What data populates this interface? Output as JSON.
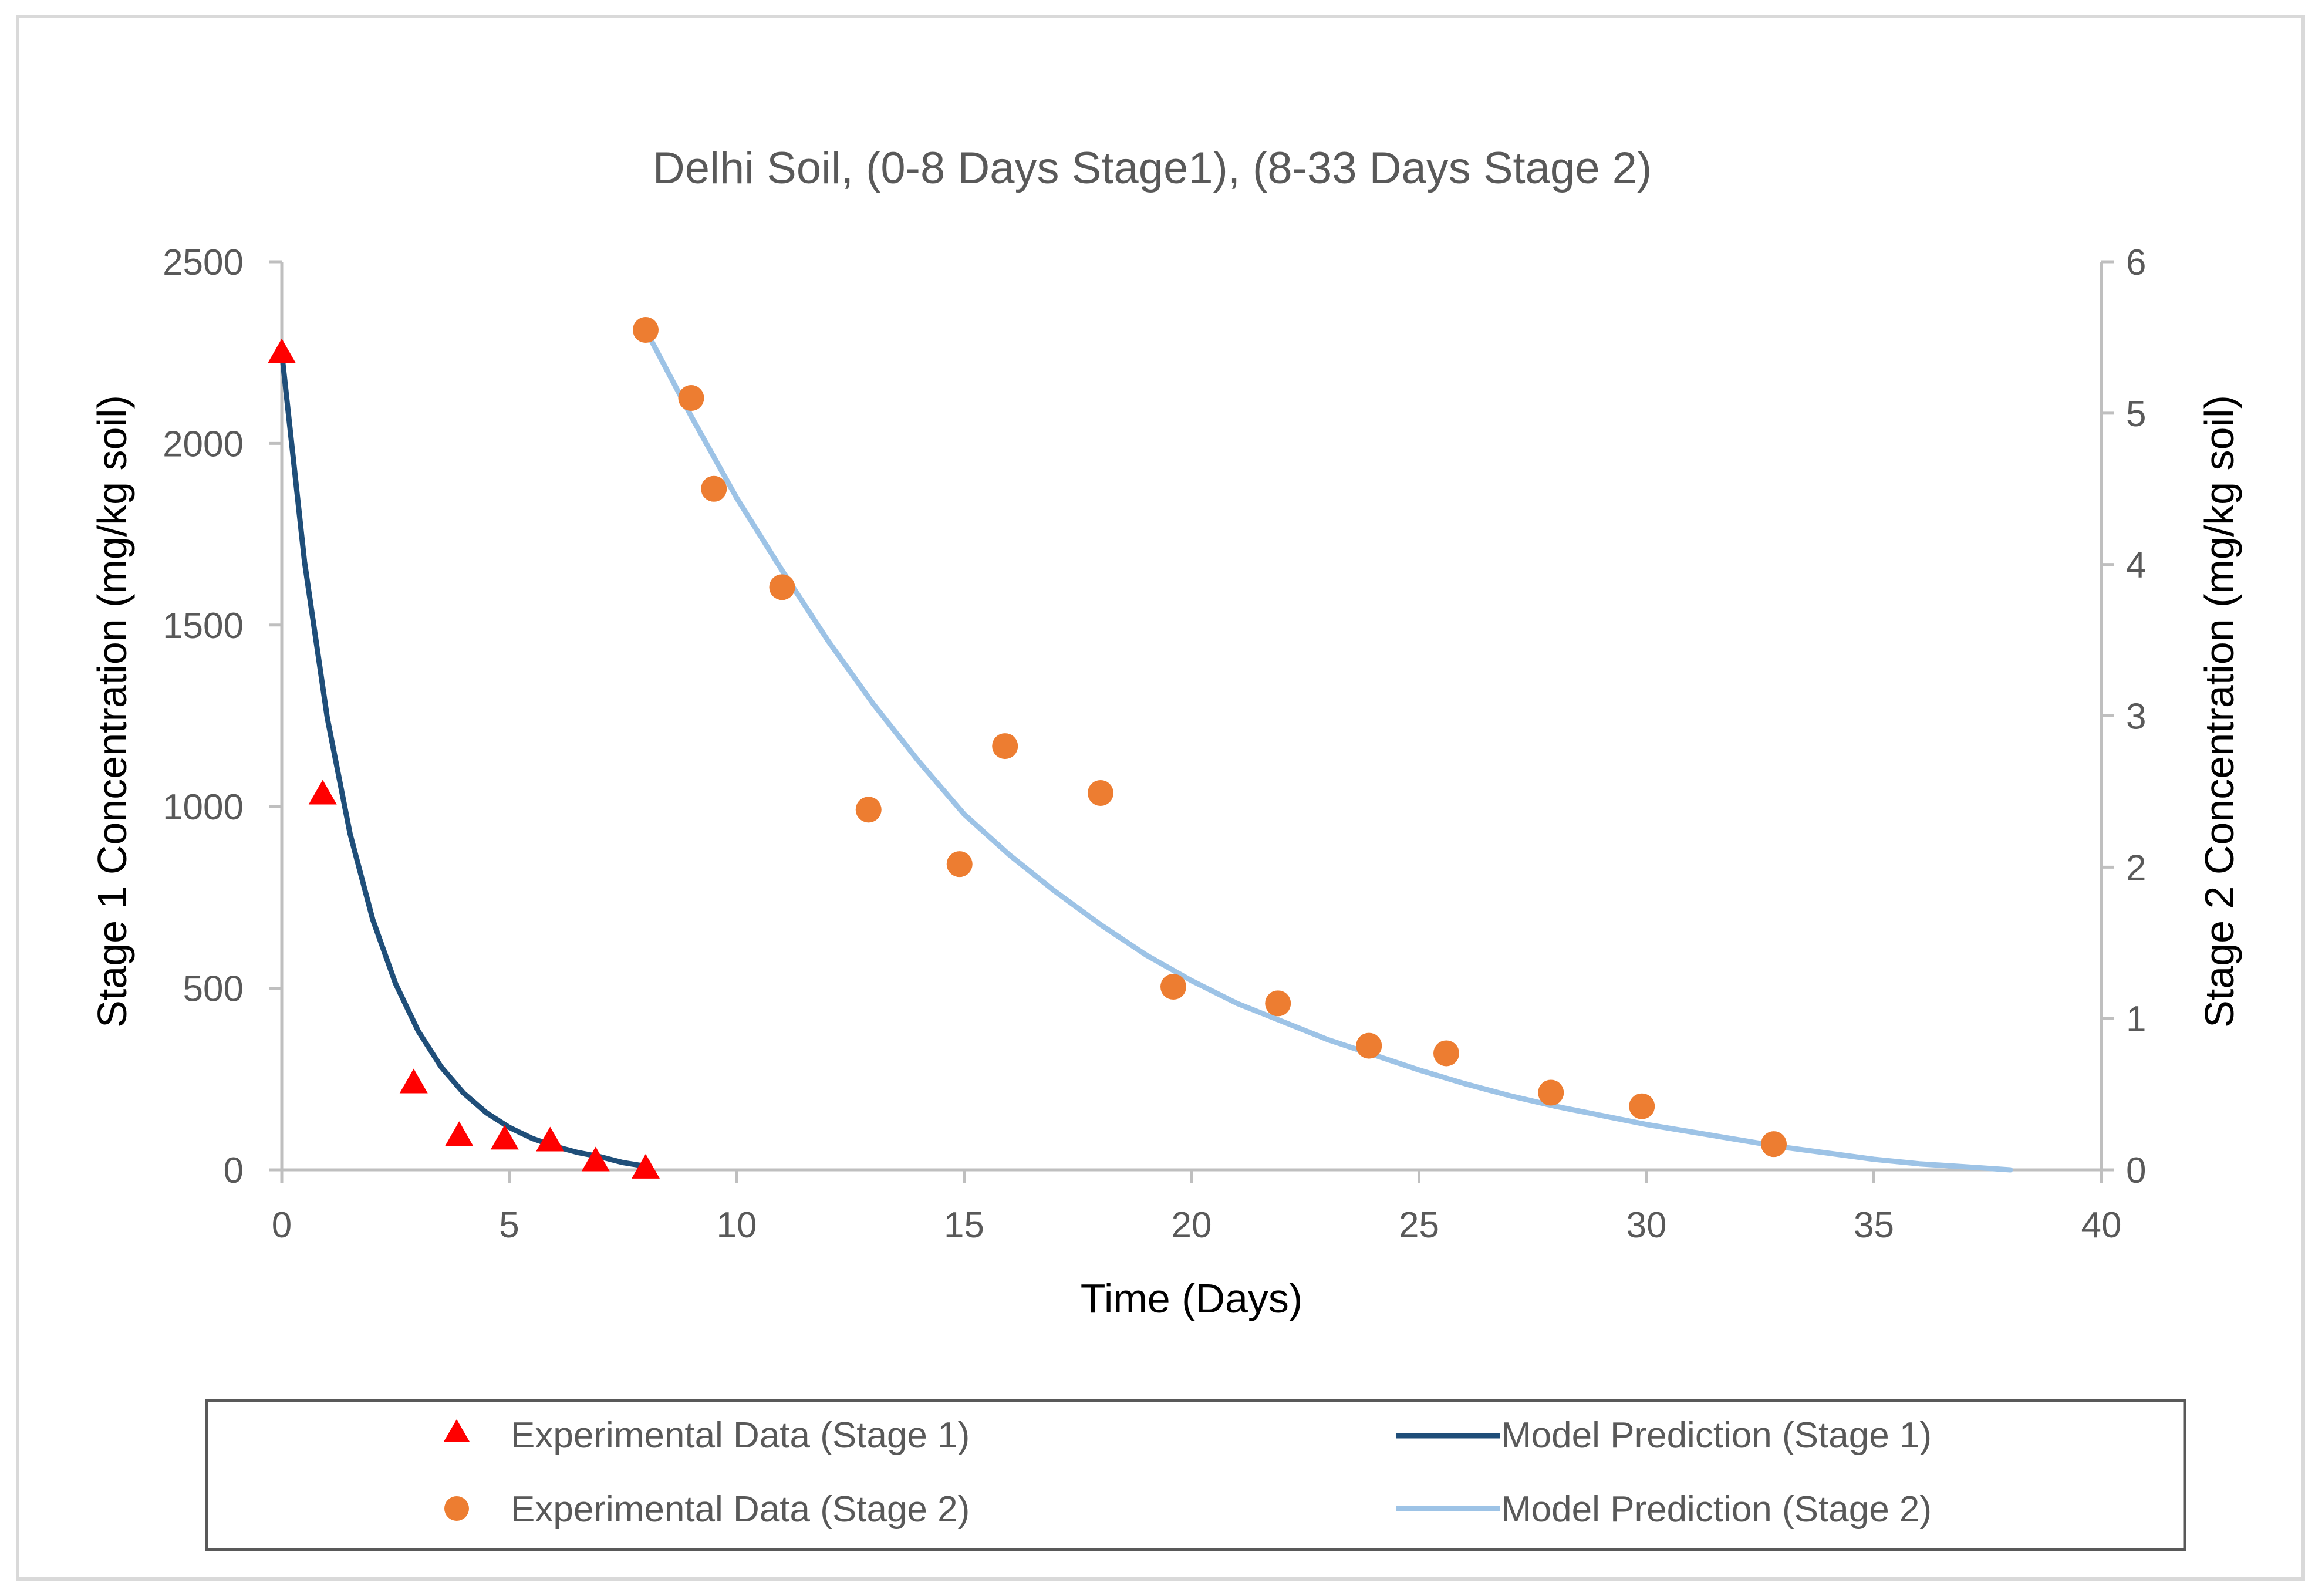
{
  "chart_data": {
    "type": "scatter",
    "title": "Delhi Soil, (0-8 Days Stage1), (8-33 Days Stage 2)",
    "xlabel": "Time (Days)",
    "ylabel": "Stage 1 Concentration (mg/kg soil)",
    "y2label": "Stage 2 Concentration (mg/kg soil)",
    "xlim": [
      0,
      40
    ],
    "ylim": [
      0,
      2500
    ],
    "y2lim": [
      0,
      6
    ],
    "xticks": [
      0,
      5,
      10,
      15,
      20,
      25,
      30,
      35,
      40
    ],
    "yticks": [
      0,
      500,
      1000,
      1500,
      2000,
      2500
    ],
    "y2ticks": [
      0,
      1,
      2,
      3,
      4,
      5,
      6
    ],
    "grid": false,
    "legend_position": "bottom",
    "colors": {
      "stage1_points": "#ff0000",
      "stage2_points": "#ed7d31",
      "stage1_model": "#1f4e79",
      "stage2_model": "#9dc3e6"
    },
    "series": [
      {
        "name": "Experimental Data (Stage 1)",
        "kind": "points",
        "marker": "triangle",
        "axis": "left",
        "x": [
          0,
          0.9,
          2.9,
          3.9,
          4.9,
          5.9,
          6.9,
          8
        ],
        "y": [
          2250,
          1035,
          240,
          95,
          85,
          80,
          25,
          5
        ]
      },
      {
        "name": "Experimental Data (Stage 2)",
        "kind": "points",
        "marker": "circle",
        "axis": "right",
        "x": [
          8,
          9,
          9.5,
          11,
          12.9,
          14.9,
          15.9,
          18,
          19.6,
          21.9,
          23.9,
          25.6,
          27.9,
          29.9,
          32.8
        ],
        "y": [
          5.55,
          5.1,
          4.5,
          3.85,
          2.38,
          2.02,
          2.8,
          2.49,
          1.21,
          1.1,
          0.82,
          0.77,
          0.51,
          0.42,
          0.17
        ]
      },
      {
        "name": "Model Prediction (Stage 1)",
        "kind": "line",
        "axis": "left",
        "x": [
          0,
          0.5,
          1,
          1.5,
          2,
          2.5,
          3,
          3.5,
          4,
          4.5,
          5,
          5.5,
          6,
          6.5,
          7,
          7.5,
          8
        ],
        "y": [
          2250,
          1674,
          1245,
          926,
          689,
          513,
          382,
          284,
          211,
          157,
          117,
          87,
          65,
          48,
          36,
          20,
          10
        ]
      },
      {
        "name": "Model Prediction (Stage 2)",
        "kind": "line",
        "axis": "right",
        "x": [
          8,
          9,
          10,
          11,
          12,
          13,
          14,
          15,
          16,
          17,
          18,
          19,
          20,
          21,
          22,
          23,
          24,
          25,
          26,
          27,
          28,
          29,
          30,
          31,
          32,
          33,
          34,
          35,
          36,
          37,
          38
        ],
        "y": [
          5.55,
          4.98,
          4.44,
          3.96,
          3.5,
          3.08,
          2.7,
          2.35,
          2.08,
          1.84,
          1.62,
          1.42,
          1.25,
          1.1,
          0.98,
          0.86,
          0.76,
          0.66,
          0.57,
          0.49,
          0.42,
          0.36,
          0.3,
          0.25,
          0.2,
          0.15,
          0.11,
          0.07,
          0.04,
          0.02,
          0
        ]
      }
    ]
  }
}
